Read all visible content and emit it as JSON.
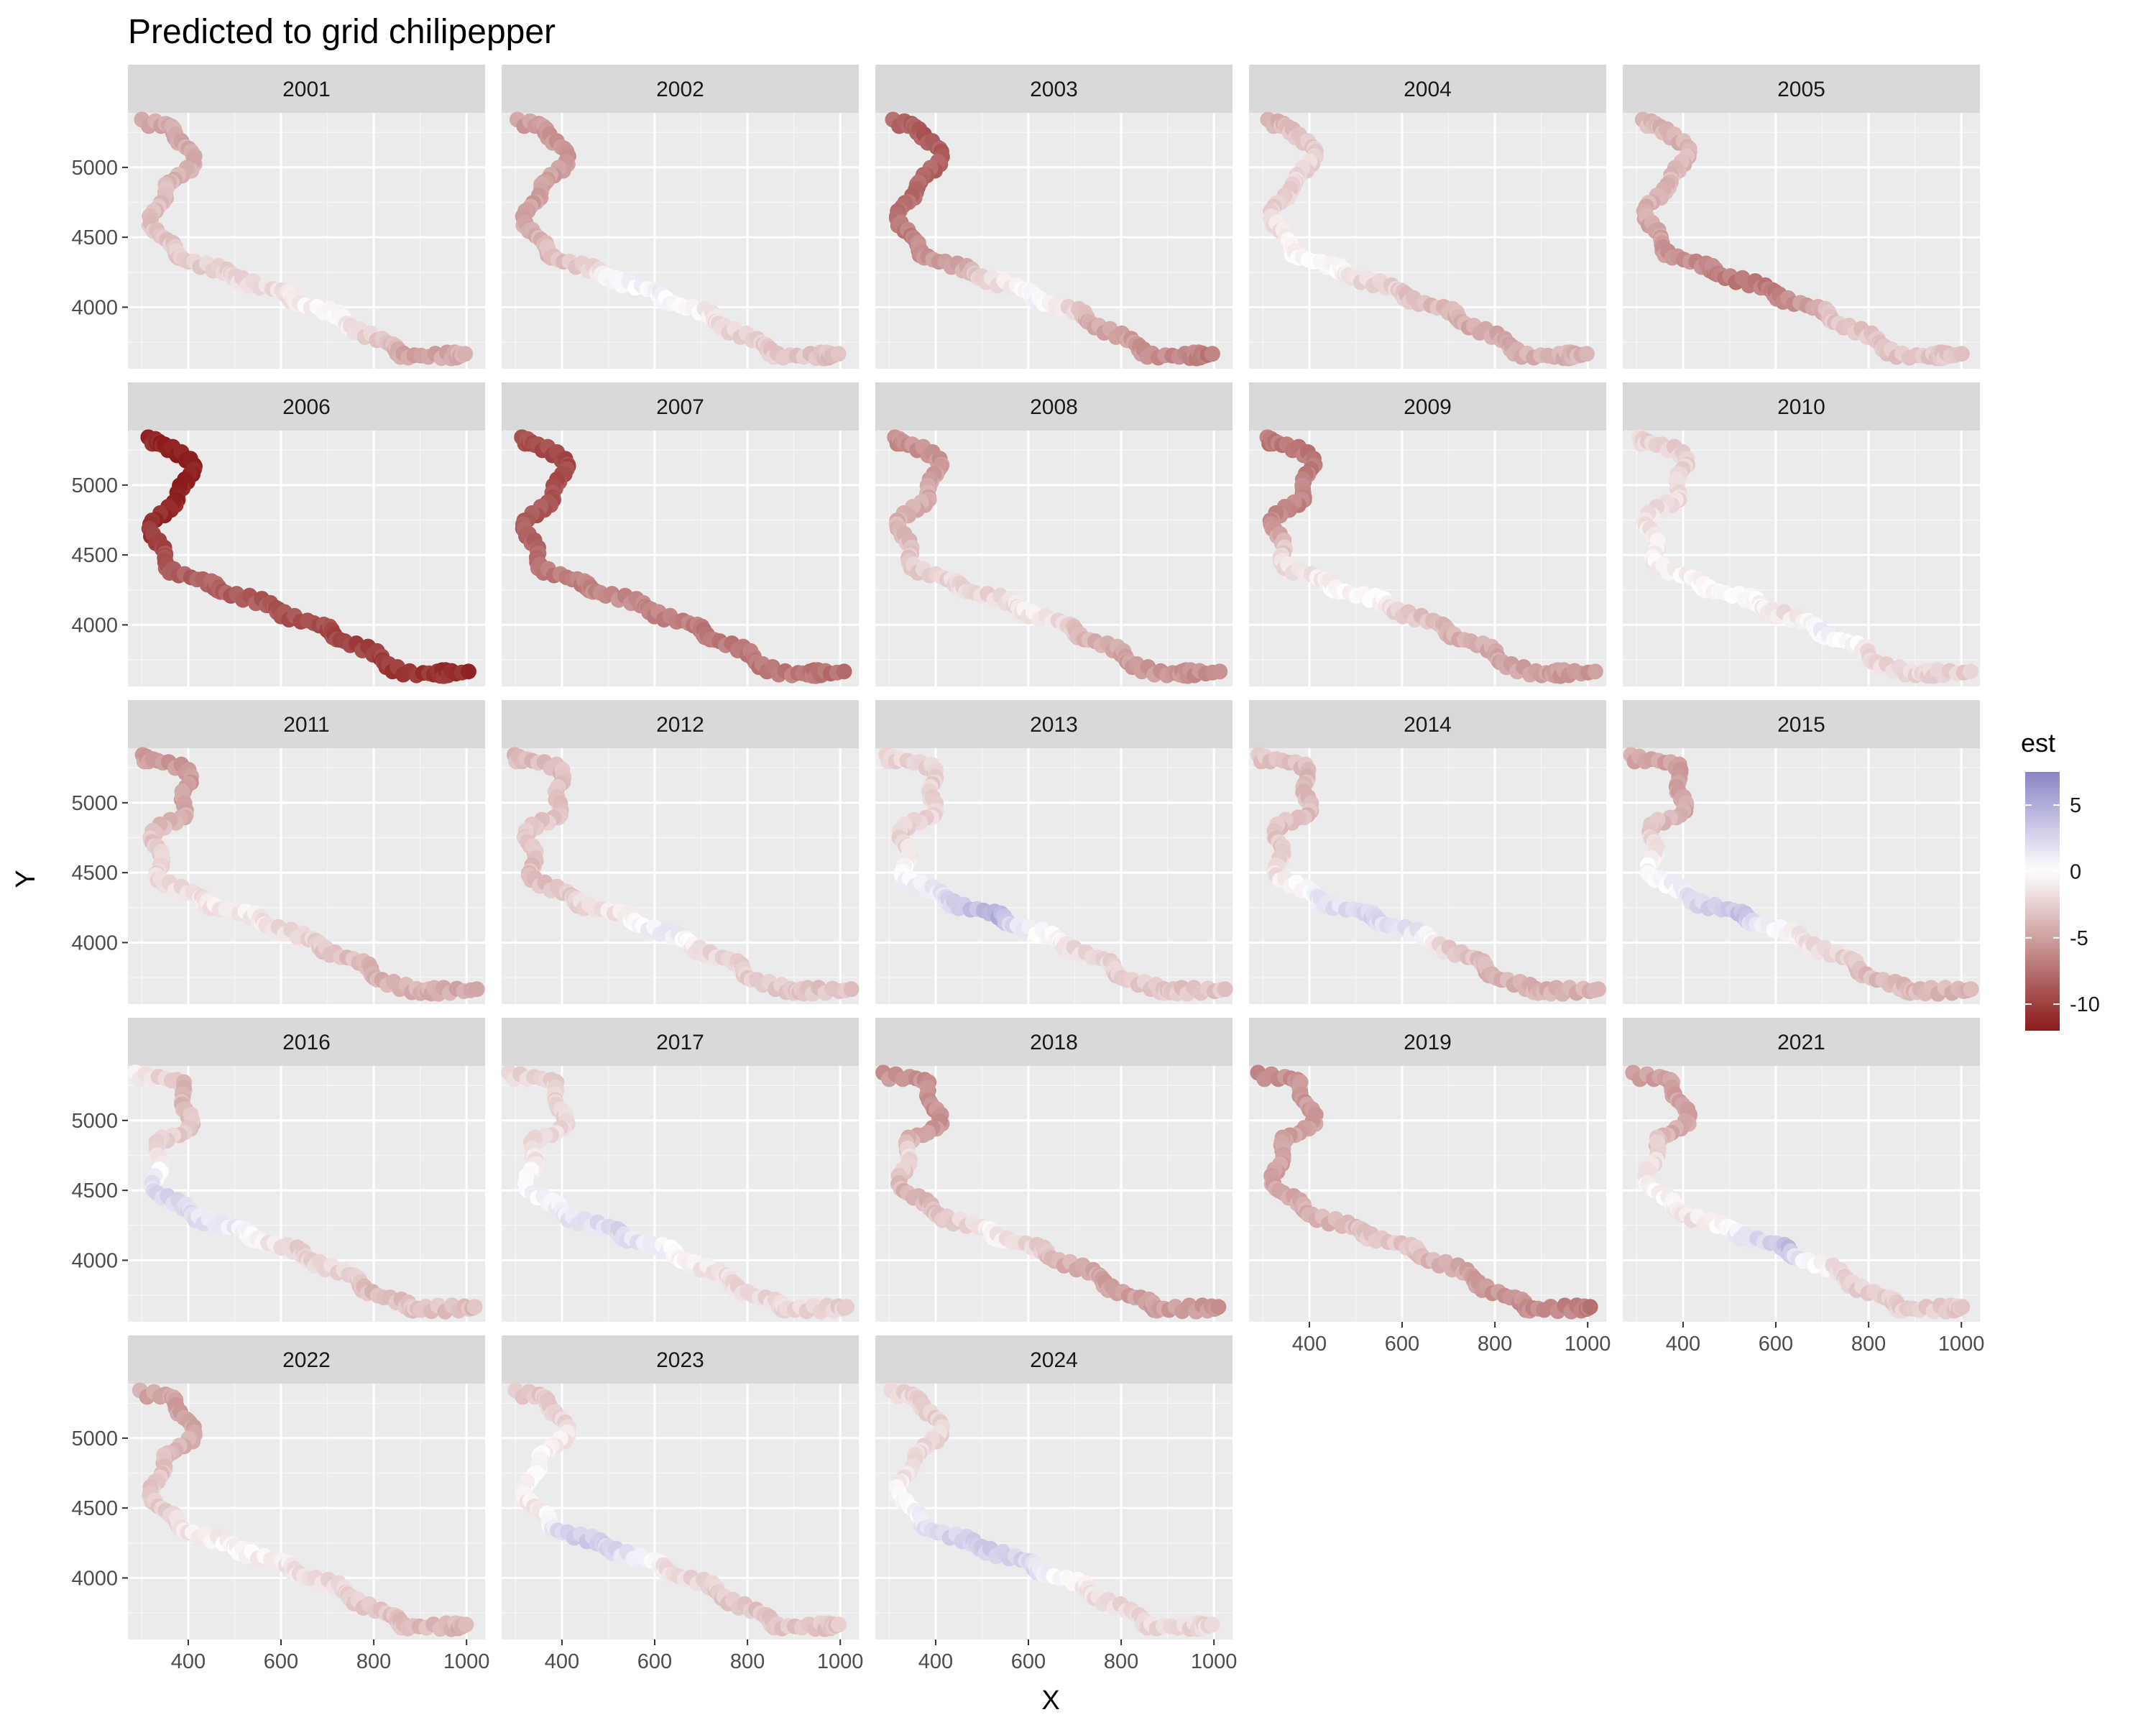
{
  "chart_data": {
    "type": "scatter",
    "title": "Predicted to grid chilipepper",
    "xlabel": "X",
    "ylabel": "Y",
    "facets": [
      "2001",
      "2002",
      "2003",
      "2004",
      "2005",
      "2006",
      "2007",
      "2008",
      "2009",
      "2010",
      "2011",
      "2012",
      "2013",
      "2014",
      "2015",
      "2016",
      "2017",
      "2018",
      "2019",
      "2021",
      "2022",
      "2023",
      "2024"
    ],
    "facet_layout": {
      "ncol": 5,
      "nrow": 5
    },
    "xlim": [
      270,
      1040
    ],
    "ylim": [
      3560,
      5390
    ],
    "x_ticks": [
      400,
      600,
      800,
      1000
    ],
    "x_tick_labels": [
      "400",
      "600",
      "800",
      "1000"
    ],
    "y_ticks": [
      4000,
      4500,
      5000
    ],
    "y_tick_labels": [
      "4000",
      "4500",
      "5000"
    ],
    "legend": {
      "title": "est",
      "placement": "right",
      "range": [
        -12,
        7.5
      ],
      "ticks": [
        5,
        0,
        -5,
        -10
      ],
      "tick_labels": [
        "5",
        "0",
        "-5",
        "-10"
      ],
      "colors": {
        "low": "#8b1a1a",
        "mid": "#ffffff",
        "high": "#8a84c6"
      }
    },
    "track": [
      {
        "x": 300,
        "y": 5320
      },
      {
        "x": 350,
        "y": 5300
      },
      {
        "x": 380,
        "y": 5250
      },
      {
        "x": 400,
        "y": 5150
      },
      {
        "x": 400,
        "y": 5000
      },
      {
        "x": 380,
        "y": 4900
      },
      {
        "x": 350,
        "y": 4850
      },
      {
        "x": 330,
        "y": 4750
      },
      {
        "x": 330,
        "y": 4600
      },
      {
        "x": 340,
        "y": 4480
      },
      {
        "x": 370,
        "y": 4400
      },
      {
        "x": 430,
        "y": 4300
      },
      {
        "x": 520,
        "y": 4200
      },
      {
        "x": 600,
        "y": 4100
      },
      {
        "x": 700,
        "y": 3960
      },
      {
        "x": 760,
        "y": 3860
      },
      {
        "x": 820,
        "y": 3740
      },
      {
        "x": 880,
        "y": 3650
      },
      {
        "x": 1010,
        "y": 3660
      }
    ],
    "series": [
      {
        "name": "2001",
        "values": [
          -4.5,
          -4.5,
          -4.0,
          -3.5,
          -3.0,
          -2.5,
          -2.0,
          -1.5,
          0.0,
          -3.0,
          -5.0,
          -4.0
        ]
      },
      {
        "name": "2002",
        "values": [
          -5.0,
          -5.5,
          -5.0,
          -5.0,
          -4.0,
          -3.0,
          0.5,
          0.8,
          -1.5,
          -2.5,
          -3.0,
          -3.5
        ]
      },
      {
        "name": "2003",
        "values": [
          -8.0,
          -8.5,
          -8.0,
          -7.5,
          -6.5,
          -5.0,
          -2.0,
          1.0,
          -4.0,
          -5.0,
          -6.0,
          -7.0
        ]
      },
      {
        "name": "2004",
        "values": [
          -4.0,
          -3.0,
          -2.0,
          -2.5,
          -1.0,
          0.0,
          -2.0,
          -3.0,
          -4.0,
          -4.5,
          -4.0,
          -4.0
        ]
      },
      {
        "name": "2005",
        "values": [
          -3.5,
          -4.0,
          -3.5,
          -4.0,
          -5.0,
          -6.0,
          -7.0,
          -6.5,
          -3.0,
          -3.0,
          -3.0,
          -3.0
        ]
      },
      {
        "name": "2006",
        "values": [
          -11.0,
          -12.0,
          -11.5,
          -11.0,
          -9.0,
          -8.0,
          -8.5,
          -9.0,
          -9.5,
          -10.0,
          -10.5,
          -11.0
        ]
      },
      {
        "name": "2007",
        "values": [
          -9.0,
          -9.5,
          -9.0,
          -8.5,
          -7.5,
          -6.5,
          -6.0,
          -6.5,
          -7.0,
          -7.0,
          -7.0,
          -7.5
        ]
      },
      {
        "name": "2008",
        "values": [
          -6.0,
          -5.5,
          -4.5,
          -4.0,
          -3.0,
          -2.0,
          -2.0,
          -1.0,
          -3.5,
          -5.0,
          -5.5,
          -6.0
        ]
      },
      {
        "name": "2009",
        "values": [
          -7.0,
          -7.0,
          -6.5,
          -6.0,
          -2.0,
          -1.0,
          0.0,
          -3.0,
          -4.0,
          -4.5,
          -5.0,
          -5.5
        ]
      },
      {
        "name": "2010",
        "values": [
          -2.0,
          -2.5,
          -2.0,
          -1.5,
          -1.0,
          -0.5,
          0.0,
          -1.5,
          1.0,
          -2.0,
          -2.0,
          -2.5
        ]
      },
      {
        "name": "2011",
        "values": [
          -5.0,
          -5.5,
          -4.5,
          -3.0,
          -2.0,
          -1.5,
          -1.0,
          -2.0,
          -3.0,
          -4.0,
          -4.0,
          -4.5
        ]
      },
      {
        "name": "2012",
        "values": [
          -3.5,
          -3.5,
          -3.0,
          -3.0,
          -3.5,
          -2.5,
          -1.0,
          1.5,
          -2.0,
          -2.5,
          -3.0,
          -3.0
        ]
      },
      {
        "name": "2013",
        "values": [
          -2.0,
          -2.5,
          -2.0,
          -2.5,
          0.5,
          2.0,
          5.0,
          0.0,
          -2.0,
          -2.5,
          -3.0,
          -3.0
        ]
      },
      {
        "name": "2014",
        "values": [
          -3.0,
          -3.5,
          -3.5,
          -3.0,
          -1.5,
          1.5,
          2.5,
          1.5,
          -3.0,
          -4.0,
          -4.0,
          -4.0
        ]
      },
      {
        "name": "2015",
        "values": [
          -4.5,
          -5.0,
          -4.5,
          -2.0,
          0.0,
          2.0,
          4.0,
          -1.0,
          -2.0,
          -3.5,
          -3.5,
          -4.0
        ]
      },
      {
        "name": "2016",
        "values": [
          -1.0,
          -4.0,
          -3.0,
          -1.5,
          2.5,
          2.0,
          0.5,
          -2.5,
          -2.0,
          -3.5,
          -3.0,
          -3.5
        ]
      },
      {
        "name": "2017",
        "values": [
          -2.0,
          -2.5,
          -2.0,
          -1.5,
          0.5,
          1.5,
          2.5,
          0.5,
          -1.5,
          -2.0,
          -2.0,
          -2.5
        ]
      },
      {
        "name": "2018",
        "values": [
          -5.5,
          -6.0,
          -5.5,
          -2.0,
          -4.0,
          -3.0,
          -0.5,
          -3.0,
          -4.5,
          -5.0,
          -5.0,
          -5.5
        ]
      },
      {
        "name": "2019",
        "values": [
          -6.0,
          -5.5,
          -5.0,
          -5.0,
          -4.5,
          -4.0,
          -3.0,
          -3.0,
          -4.5,
          -5.5,
          -6.0,
          -7.0
        ]
      },
      {
        "name": "2021",
        "values": [
          -5.0,
          -5.0,
          -4.5,
          -2.0,
          -0.5,
          -1.5,
          1.0,
          4.0,
          -2.0,
          -2.5,
          -2.5,
          -3.0
        ]
      },
      {
        "name": "2022",
        "values": [
          -4.5,
          -5.0,
          -4.0,
          -3.0,
          -2.5,
          -1.0,
          -0.5,
          -1.5,
          -2.0,
          -3.0,
          -3.5,
          -4.0
        ]
      },
      {
        "name": "2023",
        "values": [
          -3.0,
          -2.5,
          -1.0,
          0.0,
          -1.5,
          3.0,
          2.5,
          -1.5,
          -2.5,
          -3.0,
          -3.0,
          -3.0
        ]
      },
      {
        "name": "2024",
        "values": [
          -2.0,
          -2.5,
          -2.0,
          -1.5,
          0.5,
          2.5,
          3.0,
          2.0,
          -1.5,
          -2.0,
          -2.0,
          -2.0
        ]
      }
    ]
  }
}
